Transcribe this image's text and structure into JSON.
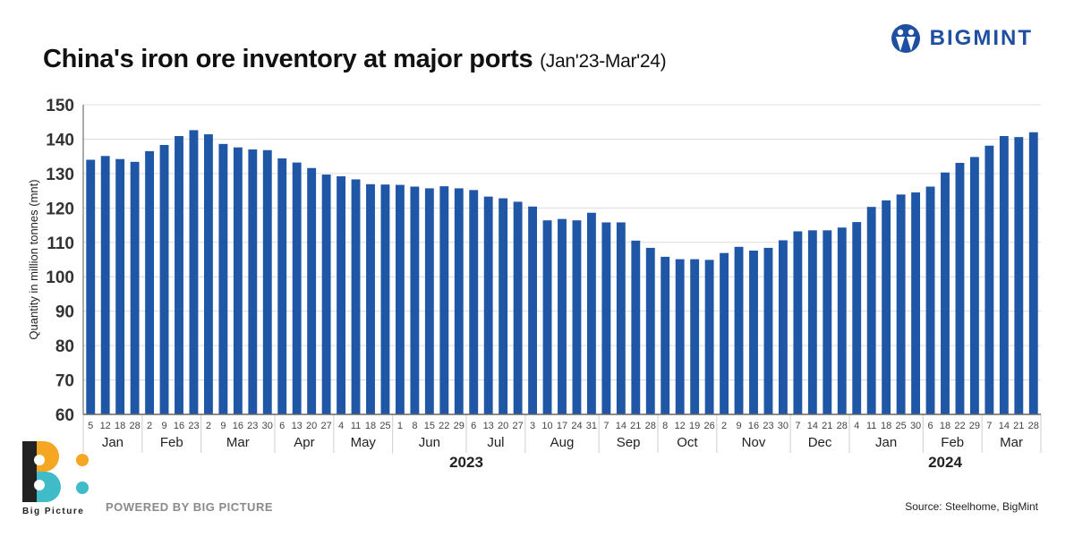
{
  "header": {
    "title": "China's iron ore inventory at major ports",
    "subtitle": "(Jan'23-Mar'24)",
    "brand": "BIGMINT"
  },
  "footer": {
    "powered_by": "POWERED BY BIG PICTURE",
    "source": "Source: Steelhome, BigMint",
    "logo_text": "Big Picture"
  },
  "colors": {
    "bar": "#1f56a5",
    "brand": "#1f4fa0",
    "orange": "#f5a623",
    "teal": "#3fbcc8"
  },
  "chart_data": {
    "type": "bar",
    "title": "China's iron ore inventory at major ports (Jan'23-Mar'24)",
    "xlabel": "",
    "ylabel": "Quantity in million tonnes (mnt)",
    "ylim": [
      60,
      150
    ],
    "yticks": [
      60,
      70,
      80,
      90,
      100,
      110,
      120,
      130,
      140,
      150
    ],
    "grid": true,
    "groups": [
      {
        "year": "2023",
        "month": "Jan",
        "days": [
          "5",
          "12",
          "18",
          "28"
        ],
        "values": [
          134.0,
          135.1,
          134.2,
          133.4
        ]
      },
      {
        "year": "2023",
        "month": "Feb",
        "days": [
          "2",
          "9",
          "16",
          "23"
        ],
        "values": [
          136.5,
          138.3,
          140.9,
          142.6
        ]
      },
      {
        "year": "2023",
        "month": "Mar",
        "days": [
          "2",
          "9",
          "16",
          "23",
          "30"
        ],
        "values": [
          141.4,
          138.6,
          137.6,
          137.0,
          136.8
        ]
      },
      {
        "year": "2023",
        "month": "Apr",
        "days": [
          "6",
          "13",
          "20",
          "27"
        ],
        "values": [
          134.4,
          133.2,
          131.6,
          129.7
        ]
      },
      {
        "year": "2023",
        "month": "May",
        "days": [
          "4",
          "11",
          "18",
          "25"
        ],
        "values": [
          129.2,
          128.3,
          126.9,
          126.8
        ]
      },
      {
        "year": "2023",
        "month": "Jun",
        "days": [
          "1",
          "8",
          "15",
          "22",
          "29"
        ],
        "values": [
          126.7,
          126.2,
          125.7,
          126.3,
          125.7
        ]
      },
      {
        "year": "2023",
        "month": "Jul",
        "days": [
          "6",
          "13",
          "20",
          "27"
        ],
        "values": [
          125.2,
          123.3,
          122.8,
          121.8
        ]
      },
      {
        "year": "2023",
        "month": "Aug",
        "days": [
          "3",
          "10",
          "17",
          "24",
          "31"
        ],
        "values": [
          120.4,
          116.4,
          116.8,
          116.4,
          118.6
        ]
      },
      {
        "year": "2023",
        "month": "Sep",
        "days": [
          "7",
          "14",
          "21",
          "28"
        ],
        "values": [
          115.8,
          115.8,
          110.5,
          108.4
        ]
      },
      {
        "year": "2023",
        "month": "Oct",
        "days": [
          "8",
          "12",
          "19",
          "26"
        ],
        "values": [
          105.8,
          105.1,
          105.1,
          104.9
        ]
      },
      {
        "year": "2023",
        "month": "Nov",
        "days": [
          "2",
          "9",
          "16",
          "23",
          "30"
        ],
        "values": [
          106.9,
          108.7,
          107.6,
          108.4,
          110.6
        ]
      },
      {
        "year": "2023",
        "month": "Dec",
        "days": [
          "7",
          "14",
          "21",
          "28"
        ],
        "values": [
          113.2,
          113.5,
          113.5,
          114.3
        ]
      },
      {
        "year": "2024",
        "month": "Jan",
        "days": [
          "4",
          "11",
          "18",
          "25",
          "30"
        ],
        "values": [
          115.9,
          120.3,
          122.2,
          123.9,
          124.5
        ]
      },
      {
        "year": "2024",
        "month": "Feb",
        "days": [
          "6",
          "18",
          "22",
          "29"
        ],
        "values": [
          126.2,
          130.3,
          133.1,
          134.8
        ]
      },
      {
        "year": "2024",
        "month": "Mar",
        "days": [
          "7",
          "14",
          "21",
          "28"
        ],
        "values": [
          138.1,
          140.9,
          140.6,
          142.0
        ]
      }
    ],
    "years": [
      "2023",
      "2024"
    ]
  }
}
